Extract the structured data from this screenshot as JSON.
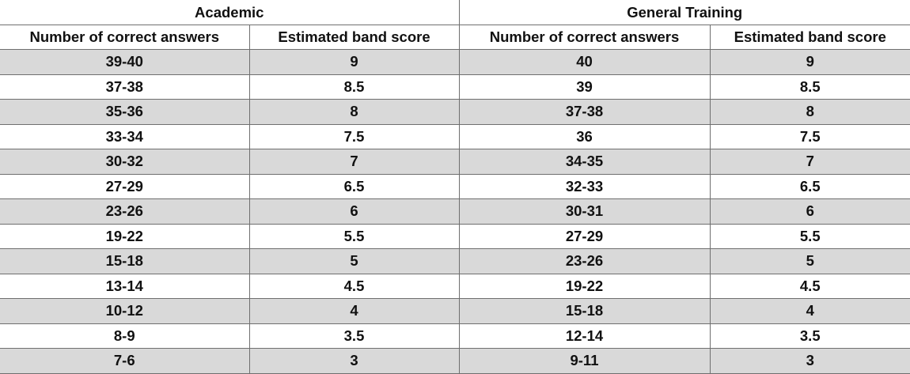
{
  "table": {
    "groups": [
      "Academic",
      "General Training"
    ],
    "columns": [
      "Number of correct answers",
      "Estimated band score",
      "Number of correct answers",
      "Estimated band score"
    ],
    "rows": [
      [
        "39-40",
        "9",
        "40",
        "9"
      ],
      [
        "37-38",
        "8.5",
        "39",
        "8.5"
      ],
      [
        "35-36",
        "8",
        "37-38",
        "8"
      ],
      [
        "33-34",
        "7.5",
        "36",
        "7.5"
      ],
      [
        "30-32",
        "7",
        "34-35",
        "7"
      ],
      [
        "27-29",
        "6.5",
        "32-33",
        "6.5"
      ],
      [
        "23-26",
        "6",
        "30-31",
        "6"
      ],
      [
        "19-22",
        "5.5",
        "27-29",
        "5.5"
      ],
      [
        "15-18",
        "5",
        "23-26",
        "5"
      ],
      [
        "13-14",
        "4.5",
        "19-22",
        "4.5"
      ],
      [
        "10-12",
        "4",
        "15-18",
        "4"
      ],
      [
        "8-9",
        "3.5",
        "12-14",
        "3.5"
      ],
      [
        "7-6",
        "3",
        "9-11",
        "3"
      ]
    ]
  }
}
